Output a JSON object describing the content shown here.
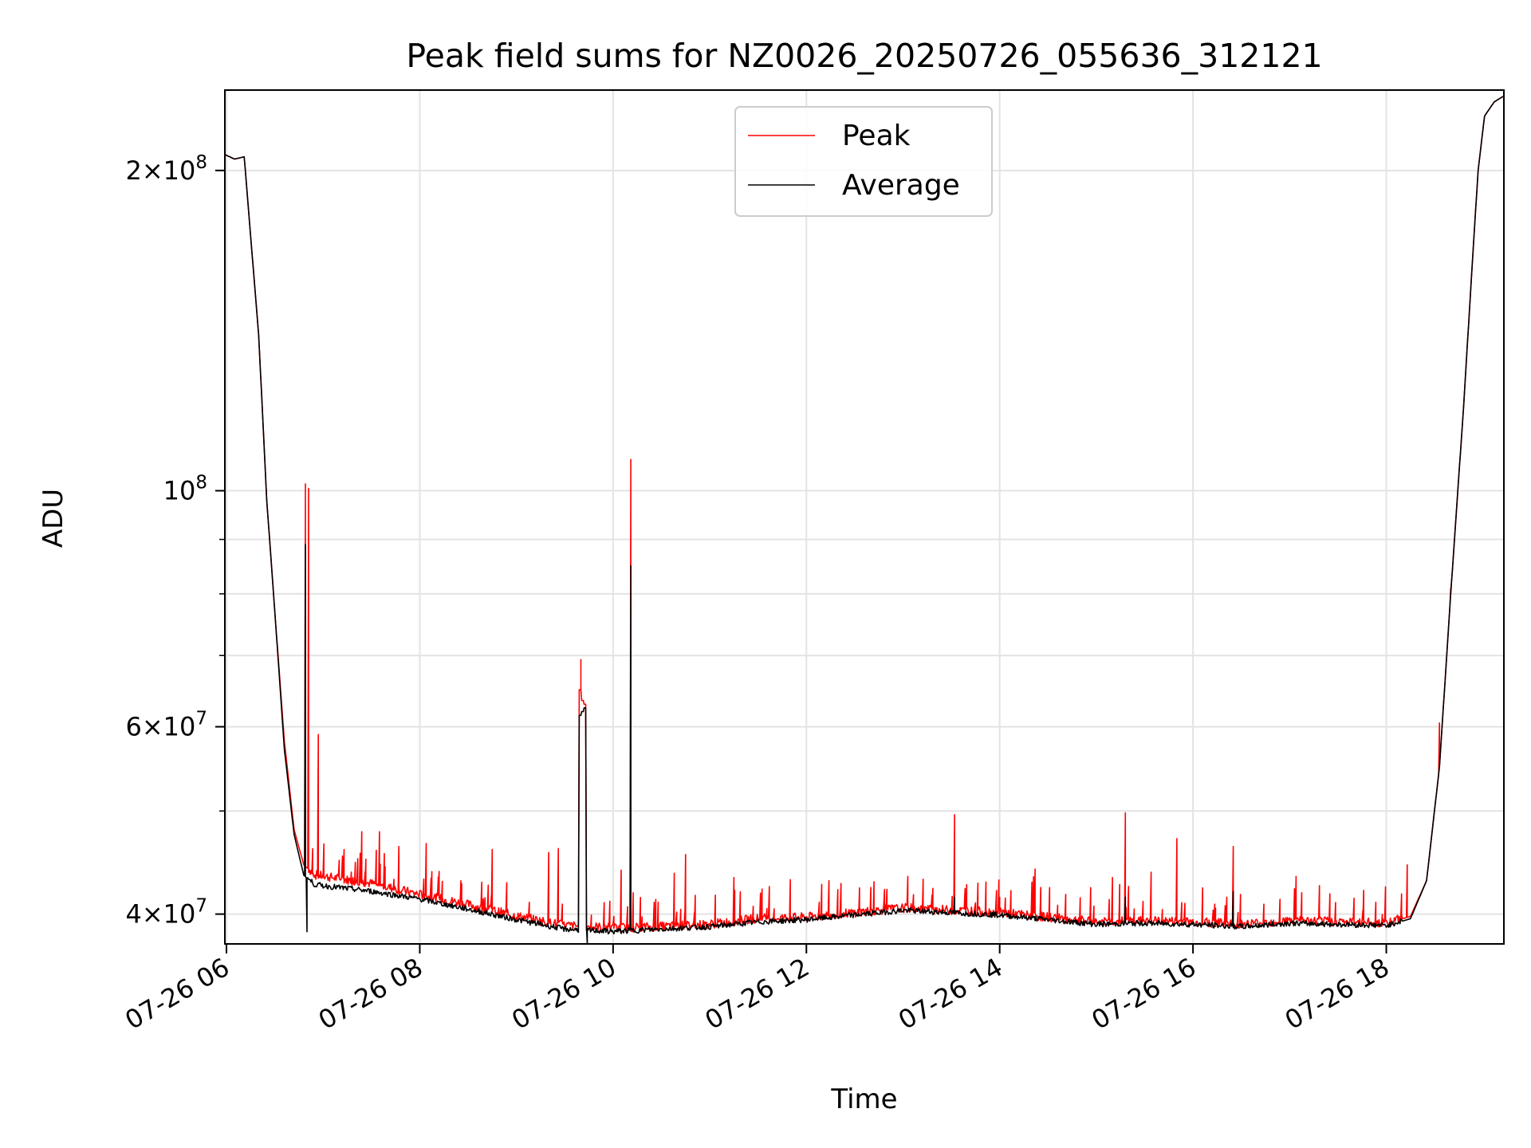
{
  "chart_data": {
    "type": "line",
    "title": "Peak field sums for NZ0026_20250726_055636_312121",
    "xlabel": "Time",
    "ylabel": "ADU",
    "y_scale": "log",
    "ylim": [
      37500000,
      238000000
    ],
    "xlim": [
      "2025-07-26 05:59",
      "2025-07-26 19:13"
    ],
    "x_tick_labels": [
      "07-26 06",
      "07-26 08",
      "07-26 10",
      "07-26 12",
      "07-26 14",
      "07-26 16",
      "07-26 18"
    ],
    "x_ticks": [
      "2025-07-26 06:00",
      "2025-07-26 08:00",
      "2025-07-26 10:00",
      "2025-07-26 12:00",
      "2025-07-26 14:00",
      "2025-07-26 16:00",
      "2025-07-26 18:00"
    ],
    "y_ticks": [
      {
        "value": 40000000,
        "mant": "4",
        "exp": "7"
      },
      {
        "value": 60000000,
        "mant": "6",
        "exp": "7"
      },
      {
        "value": 100000000,
        "mant": "",
        "exp": "8"
      },
      {
        "value": 200000000,
        "mant": "2",
        "exp": "8"
      }
    ],
    "y_minor_ticks": [
      50000000,
      70000000,
      80000000,
      90000000
    ],
    "grid": true,
    "legend_position": "top-center",
    "series": [
      {
        "name": "Peak",
        "color": "#ff0000",
        "baseline": [
          [
            "2025-07-26 05:59",
            207000000
          ],
          [
            "2025-07-26 06:05",
            205000000
          ],
          [
            "2025-07-26 06:11",
            206000000
          ],
          [
            "2025-07-26 06:20",
            140000000
          ],
          [
            "2025-07-26 06:25",
            98000000
          ],
          [
            "2025-07-26 06:30",
            77000000
          ],
          [
            "2025-07-26 06:36",
            58000000
          ],
          [
            "2025-07-26 06:42",
            48000000
          ],
          [
            "2025-07-26 06:48",
            44500000
          ],
          [
            "2025-07-26 06:55",
            43500000
          ],
          [
            "2025-07-26 07:30",
            42700000
          ],
          [
            "2025-07-26 08:00",
            41700000
          ],
          [
            "2025-07-26 08:30",
            40800000
          ],
          [
            "2025-07-26 09:00",
            39800000
          ],
          [
            "2025-07-26 09:30",
            39000000
          ],
          [
            "2025-07-26 10:00",
            38800000
          ],
          [
            "2025-07-26 10:30",
            38900000
          ],
          [
            "2025-07-26 11:00",
            39100000
          ],
          [
            "2025-07-26 11:30",
            39600000
          ],
          [
            "2025-07-26 12:00",
            39700000
          ],
          [
            "2025-07-26 12:30",
            40100000
          ],
          [
            "2025-07-26 13:00",
            40500000
          ],
          [
            "2025-07-26 13:30",
            40300000
          ],
          [
            "2025-07-26 14:00",
            40100000
          ],
          [
            "2025-07-26 14:30",
            39700000
          ],
          [
            "2025-07-26 15:00",
            39300000
          ],
          [
            "2025-07-26 15:30",
            39400000
          ],
          [
            "2025-07-26 16:00",
            39300000
          ],
          [
            "2025-07-26 16:30",
            39100000
          ],
          [
            "2025-07-26 17:00",
            39400000
          ],
          [
            "2025-07-26 17:30",
            39300000
          ],
          [
            "2025-07-26 18:00",
            39200000
          ],
          [
            "2025-07-26 18:15",
            39800000
          ],
          [
            "2025-07-26 18:25",
            43000000
          ],
          [
            "2025-07-26 18:33",
            55000000
          ],
          [
            "2025-07-26 18:40",
            80000000
          ],
          [
            "2025-07-26 18:48",
            120000000
          ],
          [
            "2025-07-26 18:53",
            160000000
          ],
          [
            "2025-07-26 18:57",
            200000000
          ],
          [
            "2025-07-26 19:01",
            225000000
          ],
          [
            "2025-07-26 19:07",
            232000000
          ],
          [
            "2025-07-26 19:13",
            235000000
          ]
        ],
        "spikes": [
          [
            "2025-07-26 06:49",
            101500000
          ],
          [
            "2025-07-26 06:51",
            100500000
          ],
          [
            "2025-07-26 06:57",
            59000000
          ],
          [
            "2025-07-26 07:13",
            46000000
          ],
          [
            "2025-07-26 07:24",
            47800000
          ],
          [
            "2025-07-26 07:35",
            47800000
          ],
          [
            "2025-07-26 07:47",
            46300000
          ],
          [
            "2025-07-26 08:04",
            46600000
          ],
          [
            "2025-07-26 08:45",
            46000000
          ],
          [
            "2025-07-26 09:20",
            45700000
          ],
          [
            "2025-07-26 09:26",
            46100000
          ],
          [
            "2025-07-26 09:40",
            65000000
          ],
          [
            "2025-07-26 10:05",
            44000000
          ],
          [
            "2025-07-26 10:11",
            107000000
          ],
          [
            "2025-07-26 10:38",
            43700000
          ],
          [
            "2025-07-26 10:45",
            45500000
          ],
          [
            "2025-07-26 11:15",
            43300000
          ],
          [
            "2025-07-26 11:50",
            43100000
          ],
          [
            "2025-07-26 12:42",
            42900000
          ],
          [
            "2025-07-26 13:03",
            43400000
          ],
          [
            "2025-07-26 13:32",
            49600000
          ],
          [
            "2025-07-26 14:22",
            44100000
          ],
          [
            "2025-07-26 15:10",
            43300000
          ],
          [
            "2025-07-26 15:18",
            49800000
          ],
          [
            "2025-07-26 15:34",
            43800000
          ],
          [
            "2025-07-26 15:50",
            47100000
          ],
          [
            "2025-07-26 16:25",
            46300000
          ],
          [
            "2025-07-26 17:04",
            43400000
          ],
          [
            "2025-07-26 17:46",
            42100000
          ],
          [
            "2025-07-26 18:13",
            44500000
          ],
          [
            "2025-07-26 18:33",
            60500000
          ],
          [
            "2025-07-26 18:40",
            81000000
          ]
        ],
        "plateau": {
          "start": "2025-07-26 09:39",
          "end": "2025-07-26 09:43",
          "values": [
            65000000,
            63500000,
            63000000
          ]
        }
      },
      {
        "name": "Average",
        "color": "#000000",
        "baseline": [
          [
            "2025-07-26 05:59",
            207000000
          ],
          [
            "2025-07-26 06:05",
            205000000
          ],
          [
            "2025-07-26 06:11",
            206000000
          ],
          [
            "2025-07-26 06:20",
            140000000
          ],
          [
            "2025-07-26 06:25",
            98000000
          ],
          [
            "2025-07-26 06:30",
            77000000
          ],
          [
            "2025-07-26 06:36",
            57000000
          ],
          [
            "2025-07-26 06:42",
            47500000
          ],
          [
            "2025-07-26 06:48",
            43500000
          ],
          [
            "2025-07-26 06:55",
            42600000
          ],
          [
            "2025-07-26 07:30",
            42000000
          ],
          [
            "2025-07-26 08:00",
            41300000
          ],
          [
            "2025-07-26 08:30",
            40400000
          ],
          [
            "2025-07-26 09:00",
            39500000
          ],
          [
            "2025-07-26 09:30",
            38700000
          ],
          [
            "2025-07-26 10:00",
            38500000
          ],
          [
            "2025-07-26 10:30",
            38700000
          ],
          [
            "2025-07-26 11:00",
            38900000
          ],
          [
            "2025-07-26 11:30",
            39300000
          ],
          [
            "2025-07-26 12:00",
            39500000
          ],
          [
            "2025-07-26 12:30",
            39900000
          ],
          [
            "2025-07-26 13:00",
            40300000
          ],
          [
            "2025-07-26 13:30",
            40100000
          ],
          [
            "2025-07-26 14:00",
            39900000
          ],
          [
            "2025-07-26 14:30",
            39500000
          ],
          [
            "2025-07-26 15:00",
            39100000
          ],
          [
            "2025-07-26 15:30",
            39200000
          ],
          [
            "2025-07-26 16:00",
            39100000
          ],
          [
            "2025-07-26 16:30",
            38900000
          ],
          [
            "2025-07-26 17:00",
            39200000
          ],
          [
            "2025-07-26 17:30",
            39100000
          ],
          [
            "2025-07-26 18:00",
            39000000
          ],
          [
            "2025-07-26 18:15",
            39600000
          ],
          [
            "2025-07-26 18:25",
            43000000
          ],
          [
            "2025-07-26 18:33",
            55000000
          ],
          [
            "2025-07-26 18:40",
            80000000
          ],
          [
            "2025-07-26 18:48",
            120000000
          ],
          [
            "2025-07-26 18:53",
            160000000
          ],
          [
            "2025-07-26 18:57",
            200000000
          ],
          [
            "2025-07-26 19:01",
            225000000
          ],
          [
            "2025-07-26 19:07",
            232000000
          ],
          [
            "2025-07-26 19:13",
            235000000
          ]
        ],
        "spikes": [
          [
            "2025-07-26 06:49",
            89000000
          ],
          [
            "2025-07-26 06:50",
            38500000
          ],
          [
            "2025-07-26 10:11",
            85000000
          ],
          [
            "2025-07-26 09:44",
            37500000
          ],
          [
            "2025-07-26 13:32",
            41500000
          ],
          [
            "2025-07-26 15:18",
            41500000
          ],
          [
            "2025-07-26 16:25",
            42000000
          ]
        ],
        "plateau": {
          "start": "2025-07-26 09:39",
          "end": "2025-07-26 09:43",
          "values": [
            61500000,
            62000000,
            62500000
          ]
        }
      }
    ]
  }
}
